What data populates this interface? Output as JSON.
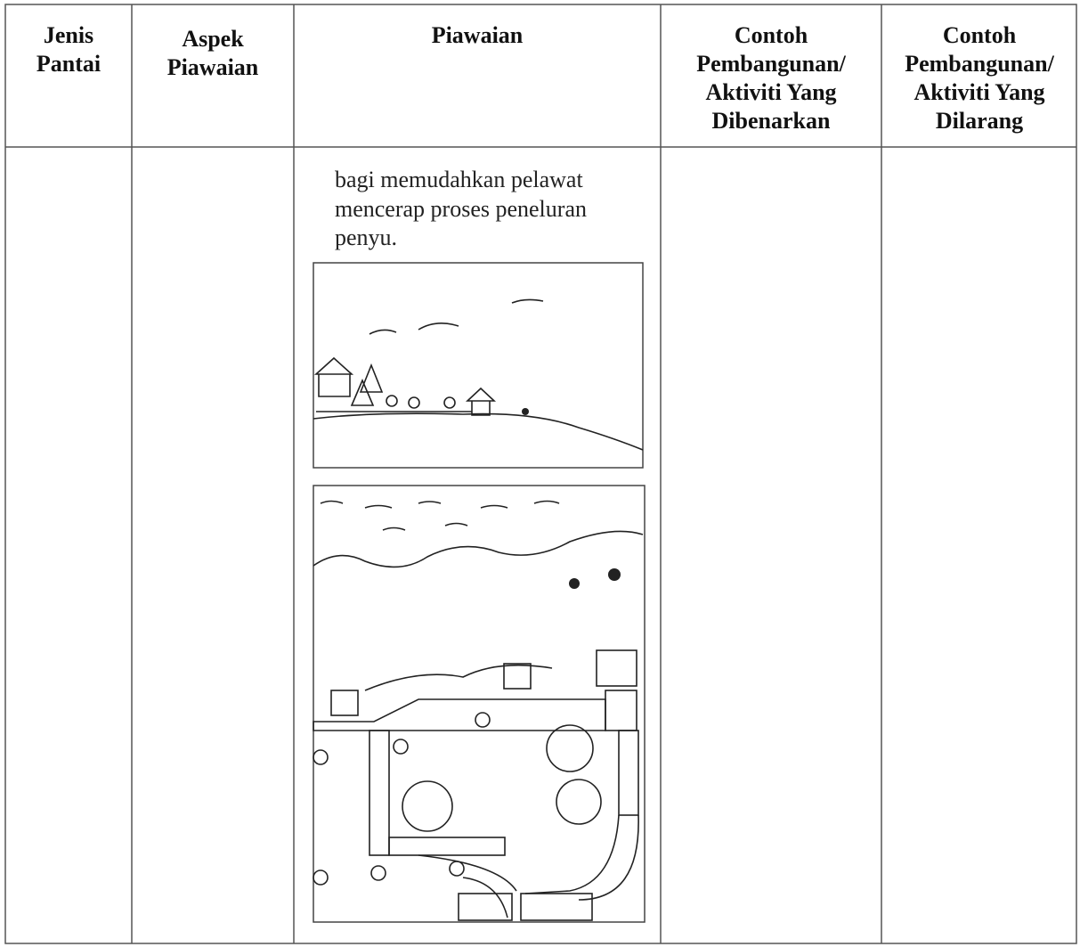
{
  "table": {
    "headers": [
      [
        "Jenis",
        "Pantai"
      ],
      [
        "Aspek",
        "Piawaian"
      ],
      [
        "Piawaian"
      ],
      [
        "Contoh",
        "Pembangunan/",
        "Aktiviti Yang",
        "Dibenarkan"
      ],
      [
        "Contoh",
        "Pembangunan/",
        "Aktiviti Yang",
        "Dilarang"
      ]
    ],
    "rows": [
      [
        [],
        [],
        [
          "bagi memudahkan pelawat",
          "mencerap proses peneluran",
          "penyu."
        ],
        [],
        []
      ]
    ]
  }
}
